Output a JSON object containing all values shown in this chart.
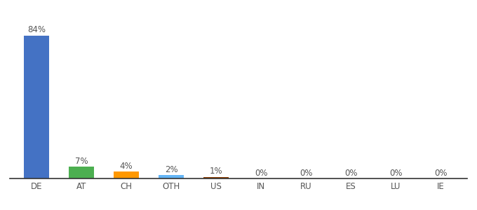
{
  "categories": [
    "DE",
    "AT",
    "CH",
    "OTH",
    "US",
    "IN",
    "RU",
    "ES",
    "LU",
    "IE"
  ],
  "values": [
    84,
    7,
    4,
    2,
    1,
    0,
    0,
    0,
    0,
    0
  ],
  "labels": [
    "84%",
    "7%",
    "4%",
    "2%",
    "1%",
    "0%",
    "0%",
    "0%",
    "0%",
    "0%"
  ],
  "colors": [
    "#4472C4",
    "#4CAF50",
    "#FF9800",
    "#64B5F6",
    "#8B3A00",
    "#4472C4",
    "#4472C4",
    "#4472C4",
    "#4472C4",
    "#4472C4"
  ],
  "ylim": [
    0,
    90
  ],
  "background_color": "#ffffff",
  "label_fontsize": 8.5,
  "tick_fontsize": 8.5
}
